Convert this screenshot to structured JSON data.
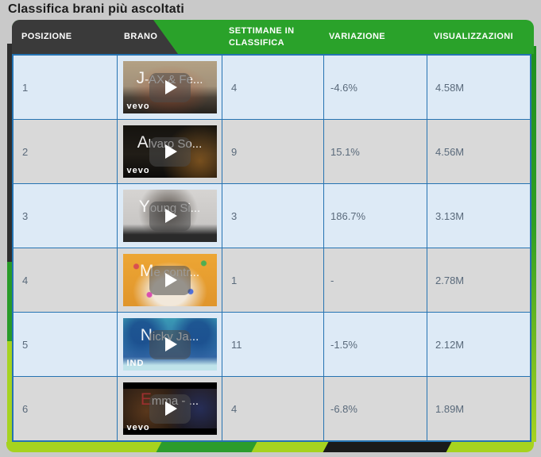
{
  "page": {
    "title": "Classifica brani più ascoltati"
  },
  "table": {
    "columns": [
      {
        "label": "POSIZIONE"
      },
      {
        "label": "BRANO"
      },
      {
        "label": "SETTIMANE IN CLASSIFICA"
      },
      {
        "label": "VARIAZIONE"
      },
      {
        "label": "VISUALIZZAZIONI"
      }
    ],
    "rows": [
      {
        "position": "1",
        "track": "J-AX & Fe...",
        "weeks": "4",
        "variation": "-4.6%",
        "views": "4.58M",
        "badge": "vevo"
      },
      {
        "position": "2",
        "track": "Alvaro So...",
        "weeks": "9",
        "variation": "15.1%",
        "views": "4.56M",
        "badge": "vevo"
      },
      {
        "position": "3",
        "track": "Young Si...",
        "weeks": "3",
        "variation": "186.7%",
        "views": "3.13M",
        "badge": ""
      },
      {
        "position": "4",
        "track": "Me contr...",
        "weeks": "1",
        "variation": "-",
        "views": "2.78M",
        "badge": ""
      },
      {
        "position": "5",
        "track": "Nicky Ja...",
        "weeks": "11",
        "variation": "-1.5%",
        "views": "2.12M",
        "badge": "IND"
      },
      {
        "position": "6",
        "track": "Emma - ...",
        "weeks": "4",
        "variation": "-6.8%",
        "views": "1.89M",
        "badge": "vevo"
      }
    ]
  },
  "icons": {
    "play": "play-icon"
  },
  "colors": {
    "header_dark": "#3a3a3a",
    "header_green": "#2aa22a",
    "border_blue": "#2573b2",
    "row_light_blue": "#ddeaf6",
    "row_gray": "#d9d9d9",
    "cell_text": "#5a6a7b",
    "lime": "#a6d31f",
    "strip_dark_green": "#2c9c2c",
    "strip_black": "#1a1a1a",
    "page_background": "#c9c9c9"
  }
}
